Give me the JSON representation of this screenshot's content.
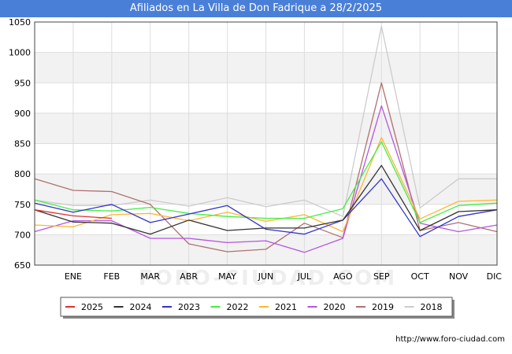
{
  "header": {
    "title": "Afiliados en La Villa de Don Fadrique a 28/2/2025"
  },
  "footer": {
    "source": "http://www.foro-ciudad.com"
  },
  "watermark": "FORO-CIUDAD.COM",
  "chart_data": {
    "type": "line",
    "title": "Afiliados en La Villa de Don Fadrique a 28/2/2025",
    "xlabel": "",
    "ylabel": "",
    "categories": [
      "",
      "ENE",
      "FEB",
      "MAR",
      "ABR",
      "MAY",
      "JUN",
      "JUL",
      "AGO",
      "SEP",
      "OCT",
      "NOV",
      "DIC"
    ],
    "ylim": [
      650,
      1050
    ],
    "yticks": [
      650,
      700,
      750,
      800,
      850,
      900,
      950,
      1000,
      1050
    ],
    "grid": true,
    "legend_position": "bottom",
    "series": [
      {
        "name": "2018",
        "color": "#cccccc",
        "values": [
          757,
          748,
          748,
          757,
          747,
          761,
          746,
          757,
          730,
          1043,
          744,
          792,
          792
        ]
      },
      {
        "name": "2019",
        "color": "#b07070",
        "values": [
          792,
          773,
          771,
          750,
          685,
          672,
          676,
          719,
          695,
          950,
          707,
          720,
          705
        ]
      },
      {
        "name": "2020",
        "color": "#b455e0",
        "values": [
          705,
          723,
          723,
          694,
          694,
          687,
          690,
          671,
          694,
          912,
          719,
          705,
          716
        ]
      },
      {
        "name": "2021",
        "color": "#ffb733",
        "values": [
          716,
          713,
          733,
          735,
          723,
          737,
          722,
          733,
          705,
          860,
          726,
          755,
          757
        ]
      },
      {
        "name": "2022",
        "color": "#44ee44",
        "values": [
          757,
          741,
          739,
          745,
          735,
          730,
          727,
          727,
          743,
          853,
          720,
          748,
          752
        ]
      },
      {
        "name": "2023",
        "color": "#3333cc",
        "values": [
          752,
          737,
          750,
          720,
          734,
          748,
          709,
          701,
          724,
          792,
          697,
          730,
          741
        ]
      },
      {
        "name": "2024",
        "color": "#333333",
        "values": [
          741,
          721,
          719,
          701,
          724,
          707,
          711,
          711,
          724,
          814,
          707,
          738,
          741
        ]
      },
      {
        "name": "2025",
        "color": "#e03030",
        "values": [
          741,
          731,
          727,
          null,
          null,
          null,
          null,
          null,
          null,
          948,
          null,
          null,
          null
        ]
      }
    ],
    "legend_order": [
      "2025",
      "2024",
      "2023",
      "2022",
      "2021",
      "2020",
      "2019",
      "2018"
    ]
  }
}
